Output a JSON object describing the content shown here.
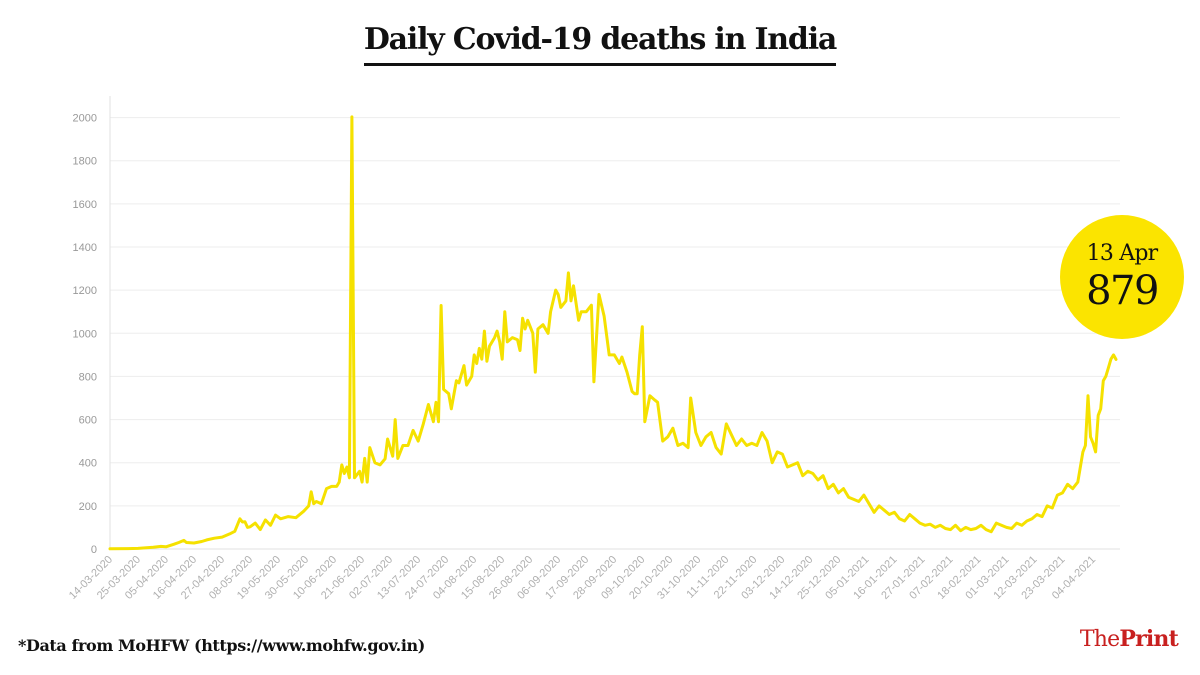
{
  "title": "Daily Covid-19 deaths in India",
  "source_note": "*Data from MoHFW (https://www.mohfw.gov.in)",
  "brand": {
    "part1": "The",
    "part2": "Print"
  },
  "callout": {
    "date": "13 Apr",
    "value": "879"
  },
  "colors": {
    "line": "#f5e100",
    "callout": "#fbe400",
    "brand": "#c8201f"
  },
  "chart_data": {
    "type": "line",
    "title": "Daily Covid-19 deaths in India",
    "xlabel": "",
    "ylabel": "",
    "ylim": [
      0,
      2100
    ],
    "yticks": [
      0,
      200,
      400,
      600,
      800,
      1000,
      1200,
      1400,
      1600,
      1800,
      2000
    ],
    "x_start": "2020-03-14",
    "x_end": "2021-04-13",
    "xticks": [
      "14-03-2020",
      "25-03-2020",
      "05-04-2020",
      "16-04-2020",
      "27-04-2020",
      "08-05-2020",
      "19-05-2020",
      "30-05-2020",
      "10-06-2020",
      "21-06-2020",
      "02-07-2020",
      "13-07-2020",
      "24-07-2020",
      "04-08-2020",
      "15-08-2020",
      "26-08-2020",
      "06-09-2020",
      "17-09-2020",
      "28-09-2020",
      "09-10-2020",
      "20-10-2020",
      "31-10-2020",
      "11-11-2020",
      "22-11-2020",
      "03-12-2020",
      "14-12-2020",
      "25-12-2020",
      "05-01-2021",
      "16-01-2021",
      "27-01-2021",
      "07-02-2021",
      "18-02-2021",
      "01-03-2021",
      "12-03-2021",
      "23-03-2021",
      "04-04-2021"
    ],
    "grid": true,
    "legend": "none",
    "series": [
      {
        "points": [
          [
            "2020-03-14",
            1
          ],
          [
            "2020-03-21",
            2
          ],
          [
            "2020-03-25",
            3
          ],
          [
            "2020-03-31",
            8
          ],
          [
            "2020-04-03",
            12
          ],
          [
            "2020-04-05",
            10
          ],
          [
            "2020-04-08",
            22
          ],
          [
            "2020-04-10",
            30
          ],
          [
            "2020-04-12",
            40
          ],
          [
            "2020-04-13",
            30
          ],
          [
            "2020-04-16",
            28
          ],
          [
            "2020-04-19",
            35
          ],
          [
            "2020-04-21",
            42
          ],
          [
            "2020-04-24",
            50
          ],
          [
            "2020-04-27",
            55
          ],
          [
            "2020-04-30",
            70
          ],
          [
            "2020-05-02",
            82
          ],
          [
            "2020-05-04",
            140
          ],
          [
            "2020-05-05",
            125
          ],
          [
            "2020-05-06",
            126
          ],
          [
            "2020-05-07",
            100
          ],
          [
            "2020-05-08",
            103
          ],
          [
            "2020-05-10",
            120
          ],
          [
            "2020-05-12",
            90
          ],
          [
            "2020-05-14",
            135
          ],
          [
            "2020-05-16",
            110
          ],
          [
            "2020-05-18",
            157
          ],
          [
            "2020-05-20",
            140
          ],
          [
            "2020-05-23",
            150
          ],
          [
            "2020-05-26",
            145
          ],
          [
            "2020-05-29",
            175
          ],
          [
            "2020-05-31",
            200
          ],
          [
            "2020-06-01",
            265
          ],
          [
            "2020-06-02",
            210
          ],
          [
            "2020-06-03",
            220
          ],
          [
            "2020-06-05",
            210
          ],
          [
            "2020-06-07",
            280
          ],
          [
            "2020-06-09",
            290
          ],
          [
            "2020-06-11",
            290
          ],
          [
            "2020-06-12",
            310
          ],
          [
            "2020-06-13",
            390
          ],
          [
            "2020-06-14",
            350
          ],
          [
            "2020-06-15",
            380
          ],
          [
            "2020-06-16",
            330
          ],
          [
            "2020-06-17",
            2003
          ],
          [
            "2020-06-18",
            330
          ],
          [
            "2020-06-20",
            360
          ],
          [
            "2020-06-21",
            310
          ],
          [
            "2020-06-22",
            420
          ],
          [
            "2020-06-23",
            310
          ],
          [
            "2020-06-24",
            470
          ],
          [
            "2020-06-26",
            400
          ],
          [
            "2020-06-28",
            390
          ],
          [
            "2020-06-30",
            418
          ],
          [
            "2020-07-01",
            510
          ],
          [
            "2020-07-03",
            430
          ],
          [
            "2020-07-04",
            600
          ],
          [
            "2020-07-05",
            420
          ],
          [
            "2020-07-07",
            480
          ],
          [
            "2020-07-09",
            480
          ],
          [
            "2020-07-11",
            550
          ],
          [
            "2020-07-13",
            500
          ],
          [
            "2020-07-15",
            580
          ],
          [
            "2020-07-17",
            670
          ],
          [
            "2020-07-19",
            590
          ],
          [
            "2020-07-20",
            680
          ],
          [
            "2020-07-21",
            590
          ],
          [
            "2020-07-22",
            1129
          ],
          [
            "2020-07-23",
            740
          ],
          [
            "2020-07-25",
            720
          ],
          [
            "2020-07-26",
            650
          ],
          [
            "2020-07-28",
            780
          ],
          [
            "2020-07-29",
            770
          ],
          [
            "2020-07-31",
            850
          ],
          [
            "2020-08-01",
            760
          ],
          [
            "2020-08-03",
            800
          ],
          [
            "2020-08-04",
            900
          ],
          [
            "2020-08-05",
            860
          ],
          [
            "2020-08-06",
            930
          ],
          [
            "2020-08-07",
            880
          ],
          [
            "2020-08-08",
            1010
          ],
          [
            "2020-08-09",
            870
          ],
          [
            "2020-08-10",
            940
          ],
          [
            "2020-08-12",
            980
          ],
          [
            "2020-08-13",
            1010
          ],
          [
            "2020-08-14",
            960
          ],
          [
            "2020-08-15",
            880
          ],
          [
            "2020-08-16",
            1100
          ],
          [
            "2020-08-17",
            960
          ],
          [
            "2020-08-19",
            980
          ],
          [
            "2020-08-21",
            970
          ],
          [
            "2020-08-22",
            920
          ],
          [
            "2020-08-23",
            1070
          ],
          [
            "2020-08-24",
            1020
          ],
          [
            "2020-08-25",
            1060
          ],
          [
            "2020-08-27",
            1000
          ],
          [
            "2020-08-28",
            820
          ],
          [
            "2020-08-29",
            1020
          ],
          [
            "2020-08-31",
            1040
          ],
          [
            "2020-09-02",
            1000
          ],
          [
            "2020-09-03",
            1100
          ],
          [
            "2020-09-05",
            1200
          ],
          [
            "2020-09-06",
            1180
          ],
          [
            "2020-09-07",
            1120
          ],
          [
            "2020-09-09",
            1150
          ],
          [
            "2020-09-10",
            1280
          ],
          [
            "2020-09-11",
            1150
          ],
          [
            "2020-09-12",
            1220
          ],
          [
            "2020-09-14",
            1060
          ],
          [
            "2020-09-15",
            1100
          ],
          [
            "2020-09-17",
            1100
          ],
          [
            "2020-09-19",
            1130
          ],
          [
            "2020-09-20",
            775
          ],
          [
            "2020-09-22",
            1180
          ],
          [
            "2020-09-24",
            1080
          ],
          [
            "2020-09-26",
            900
          ],
          [
            "2020-09-28",
            900
          ],
          [
            "2020-09-30",
            860
          ],
          [
            "2020-10-01",
            890
          ],
          [
            "2020-10-03",
            820
          ],
          [
            "2020-10-05",
            730
          ],
          [
            "2020-10-06",
            720
          ],
          [
            "2020-10-07",
            720
          ],
          [
            "2020-10-08",
            900
          ],
          [
            "2020-10-09",
            1030
          ],
          [
            "2020-10-10",
            590
          ],
          [
            "2020-10-12",
            710
          ],
          [
            "2020-10-14",
            690
          ],
          [
            "2020-10-15",
            680
          ],
          [
            "2020-10-17",
            500
          ],
          [
            "2020-10-19",
            520
          ],
          [
            "2020-10-21",
            560
          ],
          [
            "2020-10-23",
            480
          ],
          [
            "2020-10-25",
            490
          ],
          [
            "2020-10-27",
            470
          ],
          [
            "2020-10-28",
            700
          ],
          [
            "2020-10-30",
            540
          ],
          [
            "2020-11-01",
            480
          ],
          [
            "2020-11-03",
            520
          ],
          [
            "2020-11-05",
            540
          ],
          [
            "2020-11-07",
            470
          ],
          [
            "2020-11-09",
            440
          ],
          [
            "2020-11-11",
            580
          ],
          [
            "2020-11-13",
            530
          ],
          [
            "2020-11-15",
            480
          ],
          [
            "2020-11-17",
            510
          ],
          [
            "2020-11-19",
            480
          ],
          [
            "2020-11-21",
            490
          ],
          [
            "2020-11-23",
            480
          ],
          [
            "2020-11-25",
            540
          ],
          [
            "2020-11-27",
            500
          ],
          [
            "2020-11-29",
            400
          ],
          [
            "2020-12-01",
            450
          ],
          [
            "2020-12-03",
            440
          ],
          [
            "2020-12-05",
            380
          ],
          [
            "2020-12-07",
            390
          ],
          [
            "2020-12-09",
            400
          ],
          [
            "2020-12-11",
            340
          ],
          [
            "2020-12-13",
            360
          ],
          [
            "2020-12-15",
            350
          ],
          [
            "2020-12-17",
            320
          ],
          [
            "2020-12-19",
            340
          ],
          [
            "2020-12-21",
            280
          ],
          [
            "2020-12-23",
            300
          ],
          [
            "2020-12-25",
            260
          ],
          [
            "2020-12-27",
            280
          ],
          [
            "2020-12-29",
            240
          ],
          [
            "2020-12-31",
            230
          ],
          [
            "2021-01-02",
            220
          ],
          [
            "2021-01-04",
            250
          ],
          [
            "2021-01-06",
            210
          ],
          [
            "2021-01-08",
            170
          ],
          [
            "2021-01-10",
            200
          ],
          [
            "2021-01-12",
            180
          ],
          [
            "2021-01-14",
            160
          ],
          [
            "2021-01-16",
            170
          ],
          [
            "2021-01-18",
            140
          ],
          [
            "2021-01-20",
            130
          ],
          [
            "2021-01-22",
            160
          ],
          [
            "2021-01-24",
            140
          ],
          [
            "2021-01-26",
            120
          ],
          [
            "2021-01-28",
            110
          ],
          [
            "2021-01-30",
            115
          ],
          [
            "2021-02-01",
            100
          ],
          [
            "2021-02-03",
            110
          ],
          [
            "2021-02-05",
            95
          ],
          [
            "2021-02-07",
            90
          ],
          [
            "2021-02-09",
            110
          ],
          [
            "2021-02-11",
            85
          ],
          [
            "2021-02-13",
            100
          ],
          [
            "2021-02-15",
            90
          ],
          [
            "2021-02-17",
            95
          ],
          [
            "2021-02-19",
            110
          ],
          [
            "2021-02-21",
            90
          ],
          [
            "2021-02-23",
            80
          ],
          [
            "2021-02-25",
            120
          ],
          [
            "2021-02-27",
            110
          ],
          [
            "2021-03-01",
            100
          ],
          [
            "2021-03-03",
            95
          ],
          [
            "2021-03-05",
            120
          ],
          [
            "2021-03-07",
            110
          ],
          [
            "2021-03-09",
            130
          ],
          [
            "2021-03-11",
            140
          ],
          [
            "2021-03-13",
            160
          ],
          [
            "2021-03-15",
            150
          ],
          [
            "2021-03-17",
            200
          ],
          [
            "2021-03-19",
            190
          ],
          [
            "2021-03-21",
            250
          ],
          [
            "2021-03-23",
            260
          ],
          [
            "2021-03-25",
            300
          ],
          [
            "2021-03-27",
            280
          ],
          [
            "2021-03-29",
            310
          ],
          [
            "2021-03-31",
            450
          ],
          [
            "2021-04-01",
            480
          ],
          [
            "2021-04-02",
            710
          ],
          [
            "2021-04-03",
            520
          ],
          [
            "2021-04-04",
            490
          ],
          [
            "2021-04-05",
            450
          ],
          [
            "2021-04-06",
            620
          ],
          [
            "2021-04-07",
            650
          ],
          [
            "2021-04-08",
            780
          ],
          [
            "2021-04-09",
            800
          ],
          [
            "2021-04-10",
            840
          ],
          [
            "2021-04-11",
            880
          ],
          [
            "2021-04-12",
            900
          ],
          [
            "2021-04-13",
            879
          ]
        ]
      }
    ]
  }
}
